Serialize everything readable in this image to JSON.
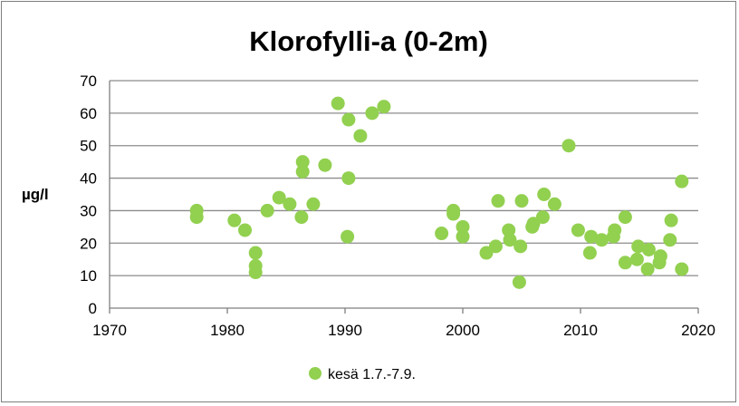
{
  "chart_data": {
    "type": "scatter",
    "title": "Klorofylli-a (0-2m)",
    "xlabel": "",
    "ylabel": "µg/l",
    "xlim": [
      1970,
      2020
    ],
    "ylim": [
      0,
      70
    ],
    "xticks": [
      1970,
      1980,
      1990,
      2000,
      2010,
      2020
    ],
    "yticks": [
      0,
      10,
      20,
      30,
      40,
      50,
      60,
      70
    ],
    "grid": "horizontal",
    "legend_position": "bottom",
    "series": [
      {
        "name": "kesä 1.7.-7.9.",
        "color": "#92d050",
        "x": [
          1977.4,
          1977.4,
          1980.6,
          1981.5,
          1982.4,
          1982.4,
          1982.4,
          1983.4,
          1984.4,
          1985.3,
          1986.3,
          1986.4,
          1986.4,
          1987.3,
          1988.3,
          1989.4,
          1990.2,
          1990.3,
          1990.3,
          1991.3,
          1992.3,
          1993.3,
          1998.2,
          1999.2,
          1999.2,
          2000.0,
          2000.0,
          2002.0,
          2002.8,
          2003.0,
          2003.9,
          2004.0,
          2004.8,
          2004.9,
          2005.0,
          2005.9,
          2006.0,
          2006.8,
          2006.9,
          2007.8,
          2009.0,
          2009.8,
          2010.8,
          2010.9,
          2011.8,
          2012.8,
          2012.9,
          2013.8,
          2013.8,
          2014.8,
          2014.9,
          2015.7,
          2015.8,
          2016.7,
          2016.8,
          2017.6,
          2017.7,
          2018.6,
          2018.6
        ],
        "y": [
          28,
          30,
          27,
          24,
          11,
          13,
          17,
          30,
          34,
          32,
          28,
          42,
          45,
          32,
          44,
          63,
          22,
          40,
          58,
          53,
          60,
          62,
          23,
          29,
          30,
          22,
          25,
          17,
          19,
          33,
          24,
          21,
          8,
          19,
          33,
          25,
          26,
          28,
          35,
          32,
          50,
          24,
          17,
          22,
          21,
          22,
          24,
          14,
          28,
          15,
          19,
          12,
          18,
          14,
          16,
          21,
          27,
          12,
          39
        ]
      }
    ]
  }
}
